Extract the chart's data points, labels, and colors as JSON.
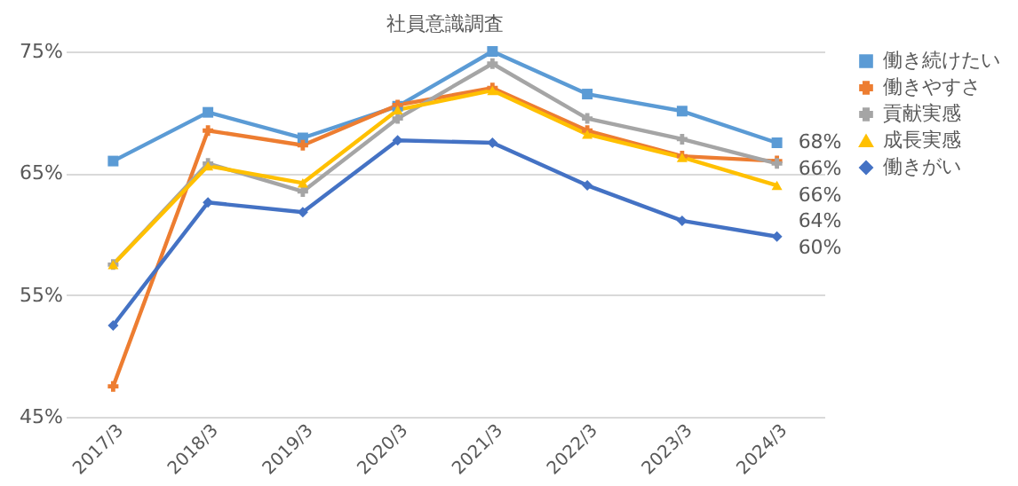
{
  "chart_data": {
    "type": "line",
    "title": "社員意識調査",
    "categories": [
      "2017/3",
      "2018/3",
      "2019/3",
      "2020/3",
      "2021/3",
      "2022/3",
      "2023/3",
      "2024/3"
    ],
    "series": [
      {
        "name": "働き続けたい",
        "color": "#5b9bd5",
        "marker": "square",
        "values": [
          66,
          70,
          67.9,
          70.5,
          75,
          71.5,
          70.1,
          67.5
        ],
        "value_labels": [
          null,
          null,
          null,
          null,
          null,
          null,
          null,
          "68%"
        ]
      },
      {
        "name": "働きやすさ",
        "color": "#ed7d31",
        "marker": "cross",
        "values": [
          47.5,
          68.5,
          67.3,
          70.6,
          72,
          68.5,
          66.4,
          66
        ],
        "value_labels": [
          null,
          null,
          null,
          null,
          null,
          null,
          null,
          "66%"
        ]
      },
      {
        "name": "貢献実感",
        "color": "#a5a5a5",
        "marker": "cross",
        "values": [
          57.5,
          65.8,
          63.5,
          69.5,
          74,
          69.5,
          67.8,
          65.8
        ],
        "value_labels": [
          null,
          null,
          null,
          null,
          null,
          null,
          null,
          "66%"
        ]
      },
      {
        "name": "成長実感",
        "color": "#ffc000",
        "marker": "triangle",
        "values": [
          57.5,
          65.6,
          64.2,
          70.2,
          71.8,
          68.2,
          66.3,
          64
        ],
        "value_labels": [
          null,
          null,
          null,
          null,
          null,
          null,
          null,
          "64%"
        ]
      },
      {
        "name": "働きがい",
        "color": "#4472c4",
        "marker": "diamond",
        "values": [
          52.5,
          62.6,
          61.8,
          67.7,
          67.5,
          64,
          61.1,
          59.8
        ],
        "value_labels": [
          null,
          null,
          null,
          null,
          null,
          null,
          null,
          "60%"
        ]
      }
    ],
    "ylim": [
      45,
      75
    ],
    "yticks": [
      {
        "value": 45,
        "label": "45%"
      },
      {
        "value": 55,
        "label": "55%"
      },
      {
        "value": 65,
        "label": "65%"
      },
      {
        "value": 75,
        "label": "75%"
      }
    ],
    "grid": "y",
    "legend": "right",
    "line_style": "solid"
  }
}
